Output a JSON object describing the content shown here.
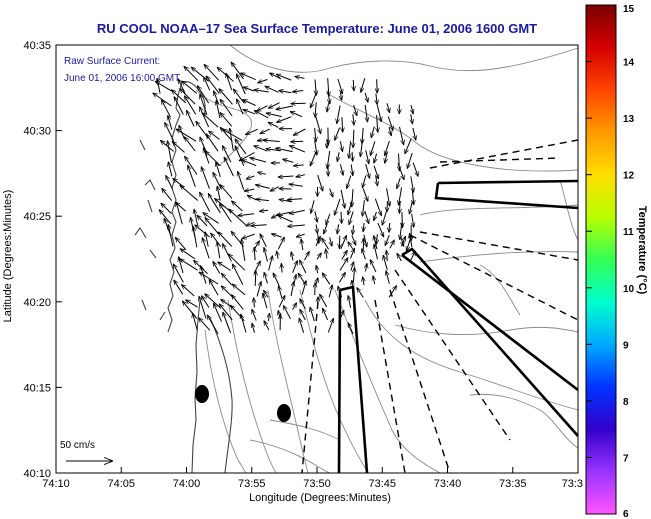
{
  "title": "RU COOL  NOAA–17  Sea Surface Temperature:  June 01, 2006 1600 GMT",
  "annotation": {
    "line1": "Raw Surface Current:",
    "line2": "June 01, 2006 16:00 GMT"
  },
  "scale_label": "50 cm/s",
  "axes": {
    "xlabel": "Longitude (Degrees:Minutes)",
    "ylabel": "Latitude (Degrees:Minutes)",
    "xticks": [
      "74:10",
      "74:05",
      "74:00",
      "73:55",
      "73:50",
      "73:45",
      "73:40",
      "73:35",
      "73:3"
    ],
    "yticks": [
      "40:35",
      "40:30",
      "40:25",
      "40:20",
      "40:15",
      "40:10"
    ]
  },
  "colorbar": {
    "label": "Temperature (°C)",
    "ticks": [
      "15",
      "14",
      "13",
      "12",
      "11",
      "10",
      "9",
      "8",
      "7",
      "6"
    ],
    "colors": [
      "#7a0000",
      "#d40000",
      "#ff4400",
      "#ff9900",
      "#ffdd00",
      "#b8ff00",
      "#33ff55",
      "#00ffcc",
      "#00aaff",
      "#0033ff",
      "#3300cc",
      "#9933ff",
      "#ff55ff"
    ]
  },
  "colors": {
    "title": "#1a1a9c",
    "annotation": "#1a1a9c"
  }
}
